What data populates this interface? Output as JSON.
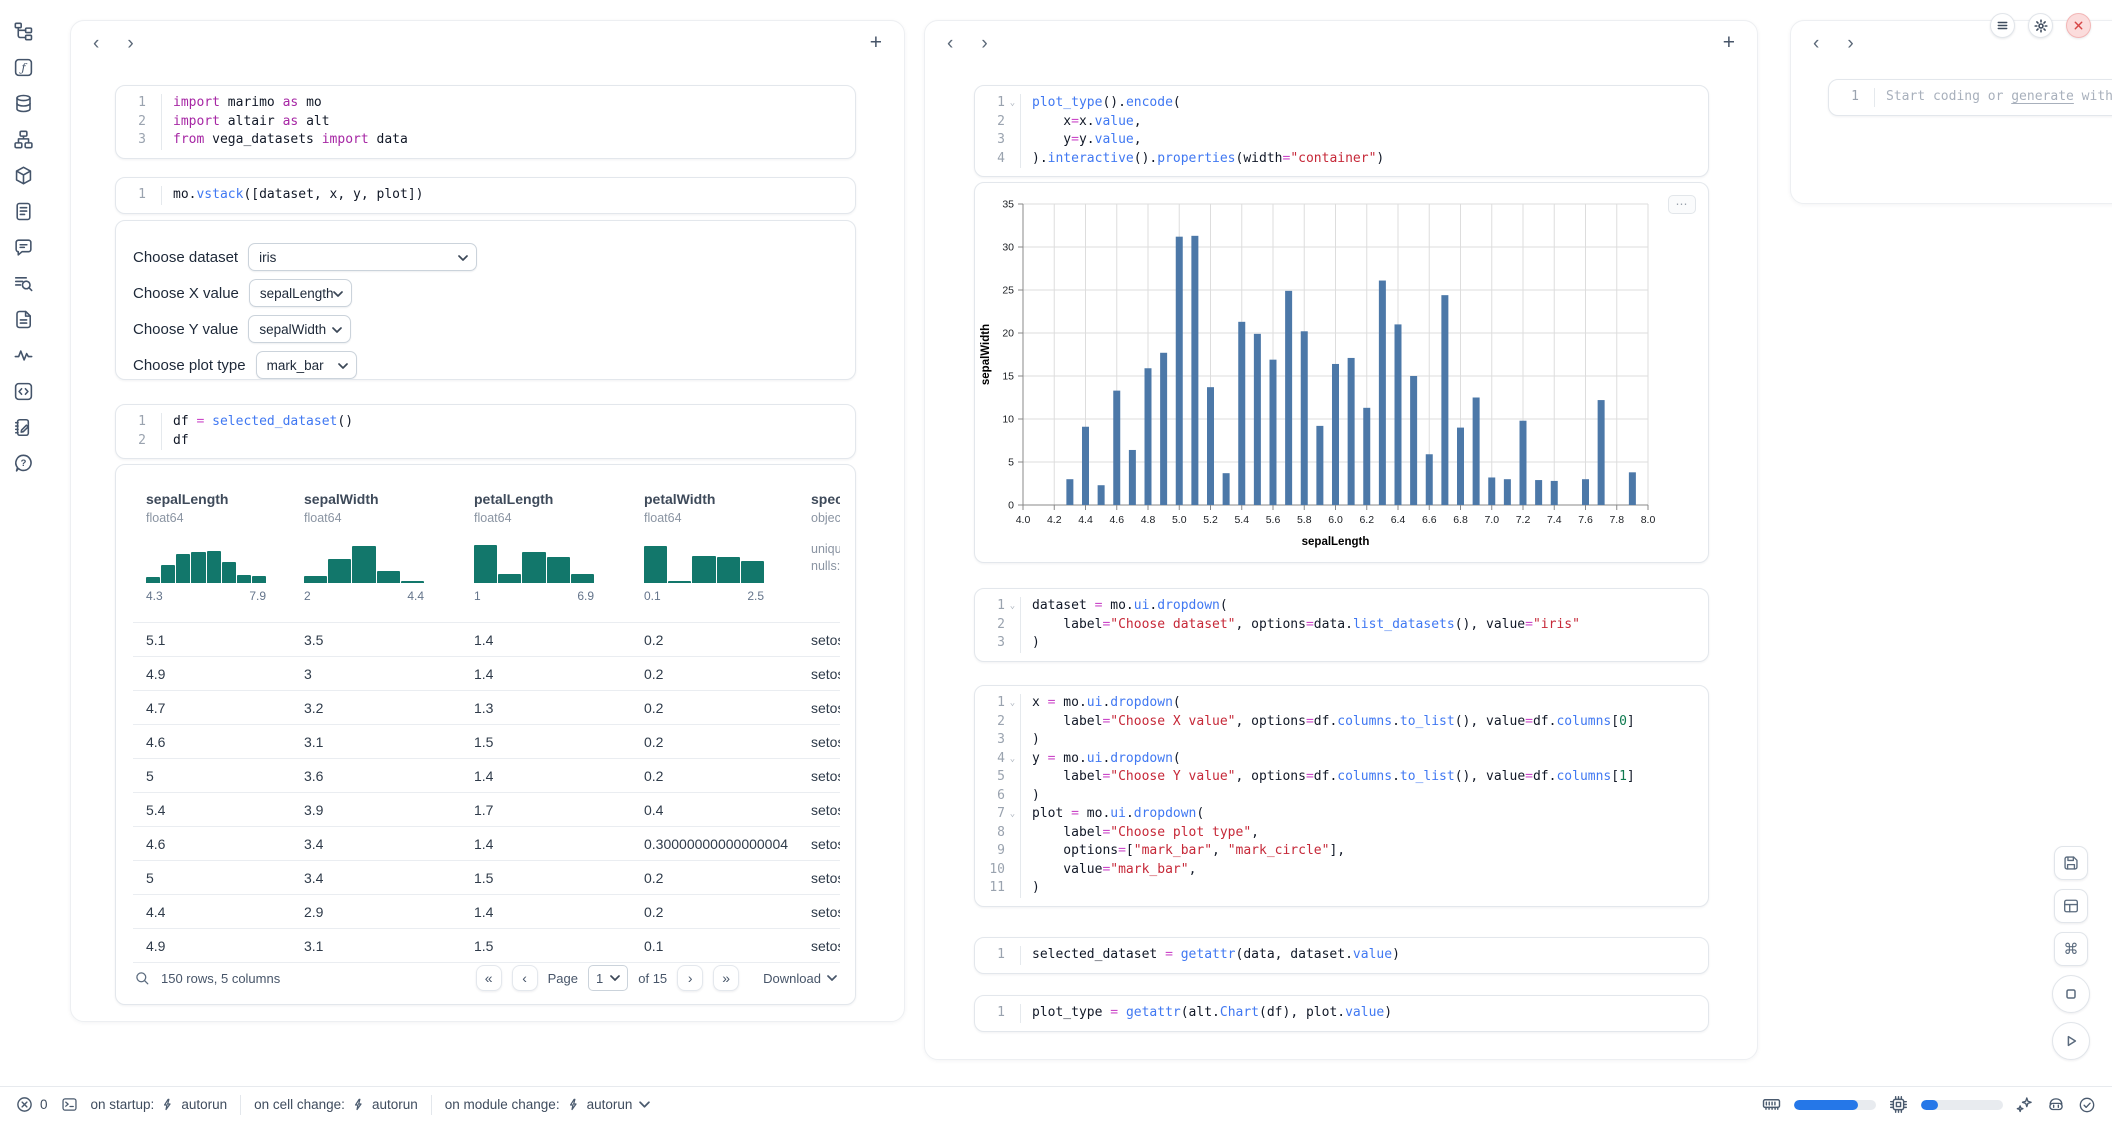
{
  "icons": {
    "prev": "‹",
    "next": "›",
    "add": "+",
    "more": "⋯",
    "menu": "≡",
    "close": "✕",
    "command": "⌘",
    "page_first": "«",
    "page_prev": "‹",
    "page_next": "›",
    "page_last": "»"
  },
  "colors": {
    "accent_blue": "#2577e8",
    "chart_bar": "#4c78a8",
    "histogram_teal": "#12776b",
    "close_red": "#d64545"
  },
  "panels": {
    "left": {
      "cells": {
        "imports": {
          "lines": [
            [
              [
                "k",
                "import"
              ],
              [
                "p",
                " marimo "
              ],
              [
                "k",
                "as"
              ],
              [
                "p",
                " mo"
              ]
            ],
            [
              [
                "k",
                "import"
              ],
              [
                "p",
                " altair "
              ],
              [
                "k",
                "as"
              ],
              [
                "p",
                " alt"
              ]
            ],
            [
              [
                "k",
                "from"
              ],
              [
                "p",
                " vega_datasets "
              ],
              [
                "k",
                "import"
              ],
              [
                "p",
                " data"
              ]
            ]
          ]
        },
        "vstack": {
          "lines": [
            [
              [
                "p",
                "mo."
              ],
              [
                "f",
                "vstack"
              ],
              [
                "p",
                "([dataset, x, y, plot])"
              ]
            ]
          ]
        },
        "df": {
          "lines": [
            [
              [
                "p",
                "df "
              ],
              [
                "o",
                "="
              ],
              [
                "p",
                " "
              ],
              [
                "f",
                "selected_dataset"
              ],
              [
                "p",
                "()"
              ]
            ],
            [
              [
                "p",
                "df"
              ]
            ]
          ]
        }
      },
      "controls": [
        {
          "name": "dataset",
          "label": "Choose dataset",
          "value": "iris"
        },
        {
          "name": "x-value",
          "label": "Choose X value",
          "value": "sepalLength"
        },
        {
          "name": "y-value",
          "label": "Choose Y value",
          "value": "sepalWidth"
        },
        {
          "name": "plot-type",
          "label": "Choose plot type",
          "value": "mark_bar"
        }
      ],
      "table": {
        "columns": [
          {
            "name": "sepalLength",
            "dtype": "float64",
            "hist": [
              0.15,
              0.45,
              0.73,
              0.77,
              0.8,
              0.53,
              0.21,
              0.18
            ],
            "range_min": "4.3",
            "range_max": "7.9"
          },
          {
            "name": "sepalWidth",
            "dtype": "float64",
            "hist": [
              0.17,
              0.6,
              0.93,
              0.29,
              0.05
            ],
            "range_min": "2",
            "range_max": "4.4"
          },
          {
            "name": "petalLength",
            "dtype": "float64",
            "hist": [
              0.95,
              0.22,
              0.78,
              0.64,
              0.22
            ],
            "range_min": "1",
            "range_max": "6.9"
          },
          {
            "name": "petalWidth",
            "dtype": "float64",
            "hist": [
              0.93,
              0.05,
              0.68,
              0.66,
              0.55
            ],
            "range_min": "0.1",
            "range_max": "2.5"
          },
          {
            "name": "species",
            "dtype": "object",
            "meta": [
              "unique:",
              "nulls:"
            ]
          }
        ],
        "rows": [
          [
            "5.1",
            "3.5",
            "1.4",
            "0.2",
            "setosa"
          ],
          [
            "4.9",
            "3",
            "1.4",
            "0.2",
            "setosa"
          ],
          [
            "4.7",
            "3.2",
            "1.3",
            "0.2",
            "setosa"
          ],
          [
            "4.6",
            "3.1",
            "1.5",
            "0.2",
            "setosa"
          ],
          [
            "5",
            "3.6",
            "1.4",
            "0.2",
            "setosa"
          ],
          [
            "5.4",
            "3.9",
            "1.7",
            "0.4",
            "setosa"
          ],
          [
            "4.6",
            "3.4",
            "1.4",
            "0.30000000000000004",
            "setosa"
          ],
          [
            "5",
            "3.4",
            "1.5",
            "0.2",
            "setosa"
          ],
          [
            "4.4",
            "2.9",
            "1.4",
            "0.2",
            "setosa"
          ],
          [
            "4.9",
            "3.1",
            "1.5",
            "0.1",
            "setosa"
          ]
        ],
        "footer": {
          "summary": "150 rows, 5 columns",
          "page_label": "Page",
          "page_value": "1",
          "pages_label": "of 15",
          "download_label": "Download"
        }
      }
    },
    "middle": {
      "cells": {
        "plot": {
          "folds": [
            1
          ],
          "lines": [
            [
              [
                "f",
                "plot_type"
              ],
              [
                "p",
                "()."
              ],
              [
                "f",
                "encode"
              ],
              [
                "p",
                "("
              ]
            ],
            [
              [
                "p",
                "    x"
              ],
              [
                "o",
                "="
              ],
              [
                "p",
                "x."
              ],
              [
                "f",
                "value"
              ],
              [
                "p",
                ","
              ]
            ],
            [
              [
                "p",
                "    y"
              ],
              [
                "o",
                "="
              ],
              [
                "p",
                "y."
              ],
              [
                "f",
                "value"
              ],
              [
                "p",
                ","
              ]
            ],
            [
              [
                "p",
                ")."
              ],
              [
                "f",
                "interactive"
              ],
              [
                "p",
                "()."
              ],
              [
                "f",
                "properties"
              ],
              [
                "p",
                "(width"
              ],
              [
                "o",
                "="
              ],
              [
                "s",
                "\"container\""
              ],
              [
                "p",
                ")"
              ]
            ]
          ]
        },
        "dataset": {
          "folds": [
            1
          ],
          "lines": [
            [
              [
                "p",
                "dataset "
              ],
              [
                "o",
                "="
              ],
              [
                "p",
                " mo."
              ],
              [
                "f",
                "ui"
              ],
              [
                "p",
                "."
              ],
              [
                "f",
                "dropdown"
              ],
              [
                "p",
                "("
              ]
            ],
            [
              [
                "p",
                "    label"
              ],
              [
                "o",
                "="
              ],
              [
                "s",
                "\"Choose dataset\""
              ],
              [
                "p",
                ", options"
              ],
              [
                "o",
                "="
              ],
              [
                "p",
                "data."
              ],
              [
                "f",
                "list_datasets"
              ],
              [
                "p",
                "(), value"
              ],
              [
                "o",
                "="
              ],
              [
                "s",
                "\"iris\""
              ]
            ],
            [
              [
                "p",
                ")"
              ]
            ]
          ]
        },
        "xyplot": {
          "folds": [
            1,
            4,
            7
          ],
          "lines": [
            [
              [
                "p",
                "x "
              ],
              [
                "o",
                "="
              ],
              [
                "p",
                " mo."
              ],
              [
                "f",
                "ui"
              ],
              [
                "p",
                "."
              ],
              [
                "f",
                "dropdown"
              ],
              [
                "p",
                "("
              ]
            ],
            [
              [
                "p",
                "    label"
              ],
              [
                "o",
                "="
              ],
              [
                "s",
                "\"Choose X value\""
              ],
              [
                "p",
                ", options"
              ],
              [
                "o",
                "="
              ],
              [
                "p",
                "df."
              ],
              [
                "f",
                "columns"
              ],
              [
                "p",
                "."
              ],
              [
                "f",
                "to_list"
              ],
              [
                "p",
                "(), value"
              ],
              [
                "o",
                "="
              ],
              [
                "p",
                "df."
              ],
              [
                "f",
                "columns"
              ],
              [
                "p",
                "["
              ],
              [
                "n",
                "0"
              ],
              [
                "p",
                "]"
              ]
            ],
            [
              [
                "p",
                ")"
              ]
            ],
            [
              [
                "p",
                "y "
              ],
              [
                "o",
                "="
              ],
              [
                "p",
                " mo."
              ],
              [
                "f",
                "ui"
              ],
              [
                "p",
                "."
              ],
              [
                "f",
                "dropdown"
              ],
              [
                "p",
                "("
              ]
            ],
            [
              [
                "p",
                "    label"
              ],
              [
                "o",
                "="
              ],
              [
                "s",
                "\"Choose Y value\""
              ],
              [
                "p",
                ", options"
              ],
              [
                "o",
                "="
              ],
              [
                "p",
                "df."
              ],
              [
                "f",
                "columns"
              ],
              [
                "p",
                "."
              ],
              [
                "f",
                "to_list"
              ],
              [
                "p",
                "(), value"
              ],
              [
                "o",
                "="
              ],
              [
                "p",
                "df."
              ],
              [
                "f",
                "columns"
              ],
              [
                "p",
                "["
              ],
              [
                "n",
                "1"
              ],
              [
                "p",
                "]"
              ]
            ],
            [
              [
                "p",
                ")"
              ]
            ],
            [
              [
                "p",
                "plot "
              ],
              [
                "o",
                "="
              ],
              [
                "p",
                " mo."
              ],
              [
                "f",
                "ui"
              ],
              [
                "p",
                "."
              ],
              [
                "f",
                "dropdown"
              ],
              [
                "p",
                "("
              ]
            ],
            [
              [
                "p",
                "    label"
              ],
              [
                "o",
                "="
              ],
              [
                "s",
                "\"Choose plot type\""
              ],
              [
                "p",
                ","
              ]
            ],
            [
              [
                "p",
                "    options"
              ],
              [
                "o",
                "="
              ],
              [
                "p",
                "["
              ],
              [
                "s",
                "\"mark_bar\""
              ],
              [
                "p",
                ", "
              ],
              [
                "s",
                "\"mark_circle\""
              ],
              [
                "p",
                "],"
              ]
            ],
            [
              [
                "p",
                "    value"
              ],
              [
                "o",
                "="
              ],
              [
                "s",
                "\"mark_bar\""
              ],
              [
                "p",
                ","
              ]
            ],
            [
              [
                "p",
                ")"
              ]
            ]
          ]
        },
        "selected": {
          "lines": [
            [
              [
                "p",
                "selected_dataset "
              ],
              [
                "o",
                "="
              ],
              [
                "p",
                " "
              ],
              [
                "f",
                "getattr"
              ],
              [
                "p",
                "(data, dataset."
              ],
              [
                "f",
                "value"
              ],
              [
                "p",
                ")"
              ]
            ]
          ]
        },
        "plot_type": {
          "lines": [
            [
              [
                "p",
                "plot_type "
              ],
              [
                "o",
                "="
              ],
              [
                "p",
                " "
              ],
              [
                "f",
                "getattr"
              ],
              [
                "p",
                "(alt."
              ],
              [
                "f",
                "Chart"
              ],
              [
                "p",
                "(df), plot."
              ],
              [
                "f",
                "value"
              ],
              [
                "p",
                ")"
              ]
            ]
          ]
        }
      }
    },
    "right": {
      "scratch": {
        "line_no": "1",
        "placeholder_prefix": "Start coding or ",
        "placeholder_link": "generate",
        "placeholder_suffix": " with"
      }
    }
  },
  "chart_data": {
    "type": "bar",
    "title": "",
    "xlabel": "sepalLength",
    "ylabel": "sepalWidth",
    "xlim": [
      4.0,
      8.0
    ],
    "ylim": [
      0,
      35
    ],
    "x_ticks": [
      "4.0",
      "4.2",
      "4.4",
      "4.6",
      "4.8",
      "5.0",
      "5.2",
      "5.4",
      "5.6",
      "5.8",
      "6.0",
      "6.2",
      "6.4",
      "6.6",
      "6.8",
      "7.0",
      "7.2",
      "7.4",
      "7.6",
      "7.8",
      "8.0"
    ],
    "y_ticks": [
      0,
      5,
      10,
      15,
      20,
      25,
      30,
      35
    ],
    "grid": true,
    "legend": false,
    "bar_color": "#4c78a8",
    "points": [
      [
        4.3,
        3.0
      ],
      [
        4.4,
        9.1
      ],
      [
        4.5,
        2.3
      ],
      [
        4.6,
        13.3
      ],
      [
        4.7,
        6.4
      ],
      [
        4.8,
        15.9
      ],
      [
        4.9,
        17.7
      ],
      [
        5.0,
        31.2
      ],
      [
        5.1,
        31.3
      ],
      [
        5.2,
        13.7
      ],
      [
        5.3,
        3.7
      ],
      [
        5.4,
        21.3
      ],
      [
        5.5,
        19.9
      ],
      [
        5.6,
        16.9
      ],
      [
        5.7,
        24.9
      ],
      [
        5.8,
        20.2
      ],
      [
        5.9,
        9.2
      ],
      [
        6.0,
        16.4
      ],
      [
        6.1,
        17.1
      ],
      [
        6.2,
        11.3
      ],
      [
        6.3,
        26.1
      ],
      [
        6.4,
        21.0
      ],
      [
        6.5,
        15.0
      ],
      [
        6.6,
        5.9
      ],
      [
        6.7,
        24.4
      ],
      [
        6.8,
        9.0
      ],
      [
        6.9,
        12.5
      ],
      [
        7.0,
        3.2
      ],
      [
        7.1,
        3.0
      ],
      [
        7.2,
        9.8
      ],
      [
        7.3,
        2.9
      ],
      [
        7.4,
        2.8
      ],
      [
        7.6,
        3.0
      ],
      [
        7.7,
        12.2
      ],
      [
        7.9,
        3.8
      ]
    ]
  },
  "status_bar": {
    "errors_count": "0",
    "run_items": [
      {
        "label": "on startup:",
        "value": "autorun"
      },
      {
        "label": "on cell change:",
        "value": "autorun"
      },
      {
        "label": "on module change:",
        "value": "autorun"
      }
    ],
    "ram_pct": 78,
    "cpu_pct": 21
  }
}
